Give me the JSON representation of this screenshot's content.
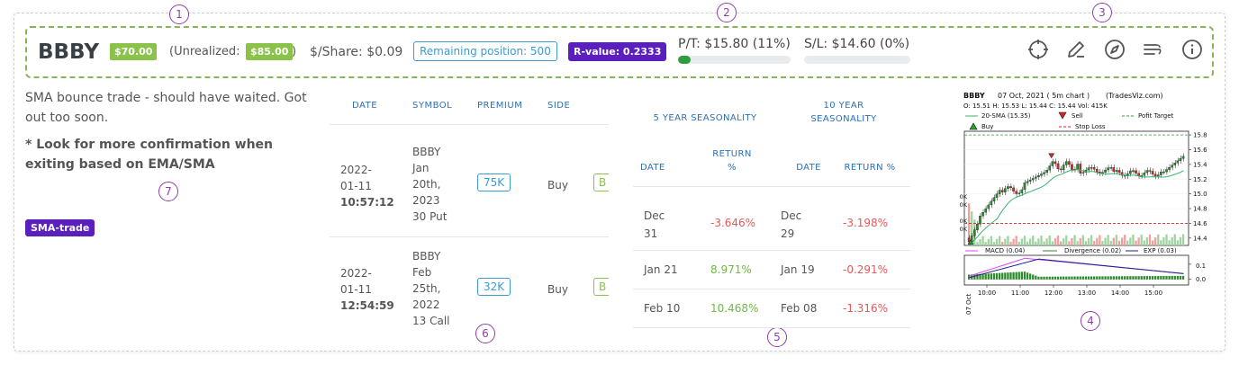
{
  "header": {
    "symbol": "BBBY",
    "pnl": "$70.00",
    "unrealized_prefix": "(Unrealized:",
    "unrealized_value": "$85.00",
    "unrealized_suffix": ")",
    "per_share": "$/Share: $0.09",
    "remaining_position": "Remaining position: 500",
    "r_value": "R-value: 0.2333",
    "profit_target": "P/T: $15.80 (11%)",
    "profit_target_progress": 0.11,
    "stop_loss": "S/L: $14.60 (0%)",
    "stop_loss_progress": 0.0,
    "icons": [
      "crosshair-icon",
      "pencil-icon",
      "compass-icon",
      "filter-lines-icon",
      "info-icon"
    ]
  },
  "markers": [
    "1",
    "2",
    "3",
    "4",
    "5",
    "6",
    "7"
  ],
  "notes": {
    "line1": "SMA bounce trade - should have waited. Got out too soon.",
    "line2": "* Look for more confirmation when exiting based on EMA/SMA",
    "tag": "SMA-trade"
  },
  "options_table": {
    "headers": [
      "DATE",
      "SYMBOL",
      "PREMIUM",
      "SIDE"
    ],
    "rows": [
      {
        "date": "2022-",
        "date2": "01-11",
        "time": "10:57:12",
        "symbol": [
          "BBBY",
          "Jan",
          "20th,",
          "2023",
          "30 Put"
        ],
        "premium": "75K",
        "side": "Buy",
        "badge": "B"
      },
      {
        "date": "2022-",
        "date2": "01-11",
        "time": "12:54:59",
        "symbol": [
          "BBBY",
          "Feb",
          "25th,",
          "2022",
          "13 Call"
        ],
        "premium": "32K",
        "side": "Buy",
        "badge": "B"
      }
    ]
  },
  "seasonality": {
    "five_year_title": "5 YEAR SEASONALITY",
    "ten_year_title_1": "10 YEAR",
    "ten_year_title_2": "SEASONALITY",
    "col_date": "DATE",
    "col_return_1": "RETURN",
    "col_return_2": "%",
    "col_return_full": "RETURN %",
    "rows": [
      {
        "d5a": "Dec",
        "d5b": "31",
        "r5": "-3.646%",
        "d10a": "Dec",
        "d10b": "29",
        "r10": "-3.198%"
      },
      {
        "d5": "Jan 21",
        "r5": "8.971%",
        "d10": "Jan 19",
        "r10": "-0.291%"
      },
      {
        "d5": "Feb 10",
        "r5": "10.468%",
        "d10": "Feb 08",
        "r10": "-1.316%"
      }
    ]
  },
  "chart": {
    "title_symbol": "BBBY",
    "title_info": "07 Oct, 2021 ( 5m chart )",
    "title_brand": "(TradesViz.com)",
    "ohlc": "O: 15.51   H: 15.53   L: 15.44   C: 15.44   Vol: 415K",
    "legend_sma": "20-SMA (15.35)",
    "legend_sell": "Sell",
    "legend_target": "Pofit Target",
    "legend_buy": "Buy",
    "legend_stop": "Stop Loss",
    "price_ticks": [
      "15.8",
      "15.6",
      "15.4",
      "15.2",
      "15.0",
      "14.8",
      "14.6",
      "14.4"
    ],
    "volume_ticks": [
      "600K",
      "500K",
      "300K",
      "200K"
    ],
    "macd_legend": "MACD (0.04)",
    "divergence_legend": "Divergence (0.02)",
    "exp_legend": "EXP (0.03)",
    "macd_ticks": [
      "0.1",
      "0.0"
    ],
    "time_ticks": [
      "10:00",
      "11:00",
      "12:00",
      "13:00",
      "14:00",
      "15:00"
    ],
    "date_label": "07 Oct",
    "colors": {
      "up": "#2e8b2e",
      "down": "#d62728",
      "sma": "#3cb371",
      "target": "#2ca02c",
      "stop": "#d62728",
      "macd": "#e040fb",
      "exp": "#1a237e"
    }
  }
}
